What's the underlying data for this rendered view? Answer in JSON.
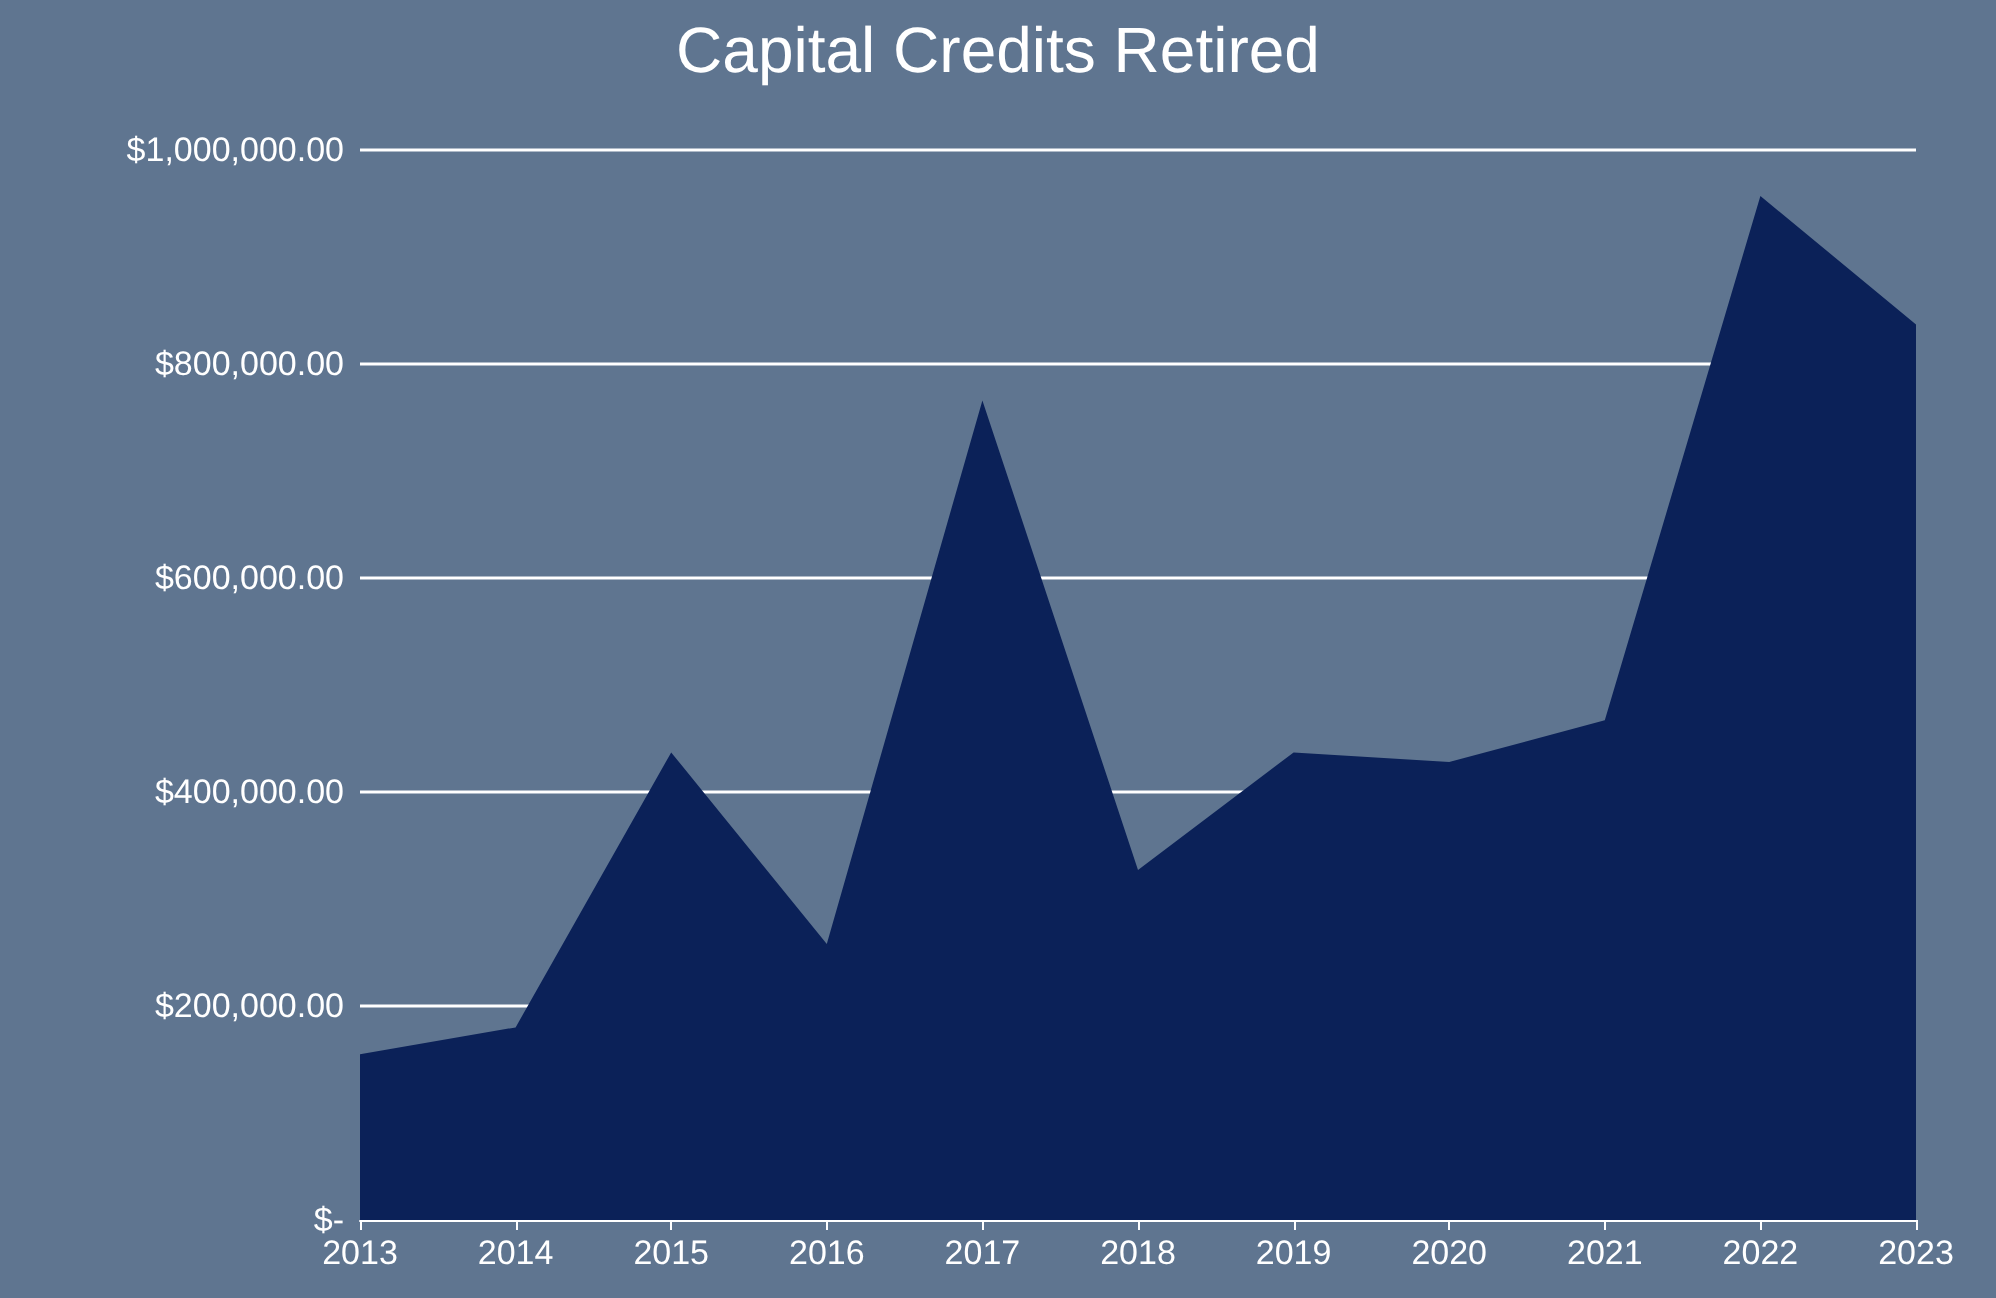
{
  "chart_data": {
    "type": "area",
    "title": "Capital Credits Retired",
    "categories": [
      "2013",
      "2014",
      "2015",
      "2016",
      "2017",
      "2018",
      "2019",
      "2020",
      "2021",
      "2022",
      "2023"
    ],
    "series": [
      {
        "color": "#0b2158",
        "values": [
          155000,
          180000,
          437000,
          258000,
          766000,
          327000,
          437000,
          428000,
          467000,
          957000,
          837000
        ]
      }
    ],
    "ylim": [
      0,
      1000000
    ],
    "yticks": [
      {
        "value": 0,
        "label": "$-"
      },
      {
        "value": 200000,
        "label": "$200,000.00"
      },
      {
        "value": 400000,
        "label": "$400,000.00"
      },
      {
        "value": 600000,
        "label": "$600,000.00"
      },
      {
        "value": 800000,
        "label": "$800,000.00"
      },
      {
        "value": 1000000,
        "label": "$1,000,000.00"
      }
    ],
    "grid": "y"
  }
}
